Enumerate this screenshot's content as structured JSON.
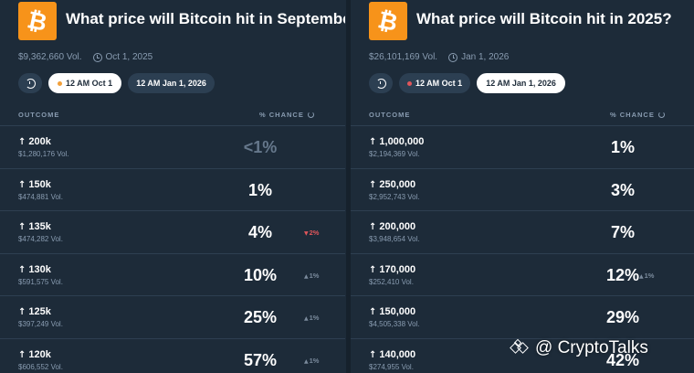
{
  "left_market": {
    "logo_symbol": "₿",
    "title": "What price will Bitcoin hit in September?",
    "volume": "$9,362,660 Vol.",
    "end_date": "Oct 1, 2025",
    "pills": [
      {
        "label": "12 AM Oct 1",
        "active": true
      },
      {
        "label": "12 AM Jan 1, 2026",
        "active": false
      }
    ],
    "outcome_header": "OUTCOME",
    "chance_header": "% CHANCE",
    "rows": [
      {
        "label": "200k",
        "vol": "$1,280,176 Vol.",
        "chance": "<1%",
        "change": ""
      },
      {
        "label": "150k",
        "vol": "$474,881 Vol.",
        "chance": "1%",
        "change": ""
      },
      {
        "label": "135k",
        "vol": "$474,282 Vol.",
        "chance": "4%",
        "change": "2%",
        "change_dir": "down"
      },
      {
        "label": "130k",
        "vol": "$591,575 Vol.",
        "chance": "10%",
        "change": "1%",
        "change_dir": "up"
      },
      {
        "label": "125k",
        "vol": "$397,249 Vol.",
        "chance": "25%",
        "change": "1%",
        "change_dir": "up"
      },
      {
        "label": "120k",
        "vol": "$606,552 Vol.",
        "chance": "57%",
        "change": "1%",
        "change_dir": "up"
      }
    ]
  },
  "right_market": {
    "logo_symbol": "₿",
    "title": "What price will Bitcoin hit in 2025?",
    "volume": "$26,101,169 Vol.",
    "end_date": "Jan 1, 2026",
    "pills": [
      {
        "label": "12 AM Oct 1",
        "active": false
      },
      {
        "label": "12 AM Jan 1, 2026",
        "active": true
      }
    ],
    "outcome_header": "OUTCOME",
    "chance_header": "% CHANCE",
    "rows": [
      {
        "label": "1,000,000",
        "vol": "$2,194,369 Vol.",
        "chance": "1%",
        "change": ""
      },
      {
        "label": "250,000",
        "vol": "$2,952,743 Vol.",
        "chance": "3%",
        "change": ""
      },
      {
        "label": "200,000",
        "vol": "$3,948,654 Vol.",
        "chance": "7%",
        "change": ""
      },
      {
        "label": "170,000",
        "vol": "$252,410 Vol.",
        "chance": "12%",
        "change": "1%",
        "change_dir": "up"
      },
      {
        "label": "150,000",
        "vol": "$4,505,338 Vol.",
        "chance": "29%",
        "change": ""
      },
      {
        "label": "140,000",
        "vol": "$274,955 Vol.",
        "chance": "42%",
        "change": ""
      }
    ]
  },
  "colors": {
    "background": "#1d2b39",
    "bitcoin_orange": "#f7931a",
    "muted_text": "#899cb1",
    "down_red": "#e0565b"
  },
  "watermark": {
    "text": "@ CryptoTalks"
  }
}
